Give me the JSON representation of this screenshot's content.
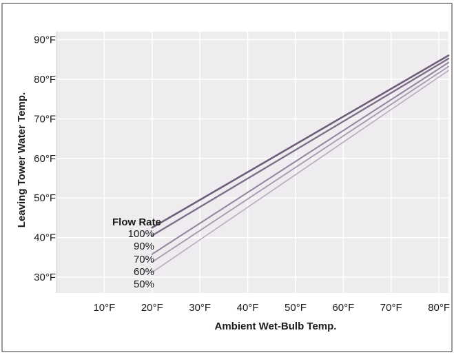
{
  "chart_data": {
    "type": "line",
    "title": "",
    "xlabel": "Ambient Wet-Bulb Temp.",
    "ylabel": "Leaving Tower Water Temp.",
    "xlim": [
      0,
      82
    ],
    "ylim": [
      26,
      92
    ],
    "x_ticks": [
      10,
      20,
      30,
      40,
      50,
      60,
      70,
      80
    ],
    "x_tick_labels": [
      "10°F",
      "20°F",
      "30°F",
      "40°F",
      "50°F",
      "60°F",
      "70°F",
      "80°F"
    ],
    "y_ticks": [
      30,
      40,
      50,
      60,
      70,
      80,
      90
    ],
    "y_tick_labels": [
      "30°F",
      "40°F",
      "50°F",
      "60°F",
      "70°F",
      "80°F",
      "90°F"
    ],
    "grid": true,
    "legend_title": "Flow Rate",
    "legend_placement": "left, at start of lines",
    "colors": {
      "plot_background": "#eeecef",
      "grid": "#ffffff",
      "frame": "#333333"
    },
    "series": [
      {
        "name": "100%",
        "color": "#6e5c78",
        "width": 2.6,
        "x": [
          20,
          82
        ],
        "y": [
          42.5,
          86.0
        ]
      },
      {
        "name": "90%",
        "color": "#7e6e88",
        "width": 2.4,
        "x": [
          20,
          82
        ],
        "y": [
          40.5,
          85.2
        ]
      },
      {
        "name": "70%",
        "color": "#9486a0",
        "width": 2.1,
        "x": [
          20,
          82
        ],
        "y": [
          35.8,
          84.2
        ]
      },
      {
        "name": "60%",
        "color": "#a79cb1",
        "width": 1.9,
        "x": [
          20,
          82
        ],
        "y": [
          33.8,
          83.2
        ]
      },
      {
        "name": "50%",
        "color": "#b8aec0",
        "width": 1.7,
        "x": [
          20,
          82
        ],
        "y": [
          31.2,
          82.2
        ]
      }
    ]
  }
}
